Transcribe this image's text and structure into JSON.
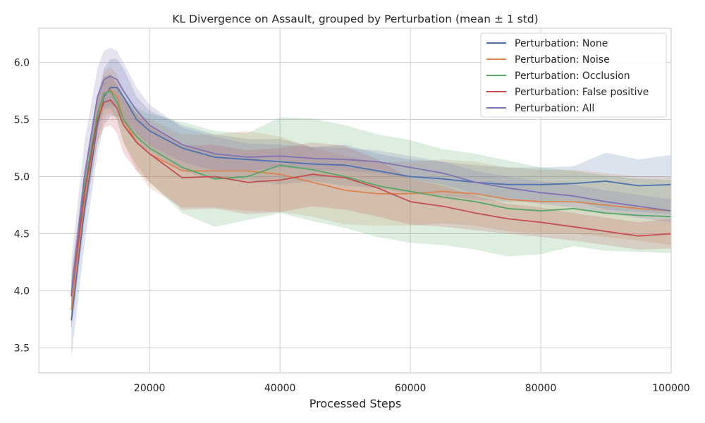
{
  "chart_data": {
    "type": "line",
    "title": "KL Divergence on Assault, grouped by Perturbation (mean ± 1 std)",
    "xlabel": "Processed Steps",
    "ylabel": "",
    "xlim": [
      3000,
      100000
    ],
    "ylim": [
      3.28,
      6.3
    ],
    "x_ticks": [
      20000,
      40000,
      60000,
      80000,
      100000
    ],
    "x_tick_labels": [
      "20000",
      "40000",
      "60000",
      "80000",
      "100000"
    ],
    "y_ticks": [
      3.5,
      4.0,
      4.5,
      5.0,
      5.5,
      6.0
    ],
    "y_tick_labels": [
      "3.5",
      "4.0",
      "4.5",
      "5.0",
      "5.5",
      "6.0"
    ],
    "grid": true,
    "legend_position": "top-right",
    "x": [
      8000,
      10000,
      12000,
      13000,
      14000,
      15000,
      16000,
      18000,
      20000,
      25000,
      30000,
      35000,
      40000,
      45000,
      50000,
      55000,
      60000,
      65000,
      70000,
      75000,
      80000,
      85000,
      90000,
      95000,
      100000
    ],
    "series": [
      {
        "name": "Perturbation: None",
        "color": "#4c72b0",
        "values": [
          3.74,
          4.7,
          5.45,
          5.7,
          5.78,
          5.78,
          5.7,
          5.5,
          5.4,
          5.25,
          5.17,
          5.15,
          5.13,
          5.11,
          5.1,
          5.05,
          5.0,
          4.98,
          4.95,
          4.93,
          4.93,
          4.94,
          4.96,
          4.92,
          4.93
        ],
        "std": [
          0.33,
          0.3,
          0.25,
          0.25,
          0.25,
          0.25,
          0.25,
          0.2,
          0.18,
          0.2,
          0.2,
          0.18,
          0.2,
          0.15,
          0.18,
          0.15,
          0.15,
          0.15,
          0.15,
          0.15,
          0.15,
          0.15,
          0.25,
          0.23,
          0.26
        ]
      },
      {
        "name": "Perturbation: Noise",
        "color": "#dd8452",
        "values": [
          3.83,
          4.8,
          5.5,
          5.72,
          5.76,
          5.7,
          5.5,
          5.3,
          5.2,
          5.05,
          5.05,
          5.05,
          5.02,
          4.95,
          4.88,
          4.85,
          4.85,
          4.87,
          4.85,
          4.8,
          4.78,
          4.78,
          4.75,
          4.72,
          4.7
        ],
        "std": [
          0.2,
          0.2,
          0.2,
          0.2,
          0.2,
          0.2,
          0.2,
          0.25,
          0.3,
          0.32,
          0.32,
          0.35,
          0.33,
          0.3,
          0.3,
          0.28,
          0.28,
          0.28,
          0.28,
          0.28,
          0.28,
          0.28,
          0.28,
          0.28,
          0.3
        ]
      },
      {
        "name": "Perturbation: Occlusion",
        "color": "#55a868",
        "values": [
          3.95,
          4.9,
          5.55,
          5.73,
          5.75,
          5.65,
          5.5,
          5.35,
          5.25,
          5.08,
          4.98,
          5.0,
          5.1,
          5.06,
          5.0,
          4.92,
          4.87,
          4.82,
          4.78,
          4.72,
          4.7,
          4.72,
          4.68,
          4.66,
          4.65
        ],
        "std": [
          0.15,
          0.15,
          0.15,
          0.15,
          0.15,
          0.15,
          0.2,
          0.25,
          0.3,
          0.4,
          0.42,
          0.38,
          0.42,
          0.45,
          0.45,
          0.45,
          0.45,
          0.42,
          0.42,
          0.42,
          0.38,
          0.33,
          0.33,
          0.32,
          0.32
        ]
      },
      {
        "name": "Perturbation: False positive",
        "color": "#c44e52",
        "values": [
          3.95,
          4.85,
          5.5,
          5.65,
          5.67,
          5.6,
          5.45,
          5.3,
          5.2,
          4.99,
          5.0,
          4.95,
          4.97,
          5.02,
          4.99,
          4.9,
          4.78,
          4.74,
          4.68,
          4.63,
          4.6,
          4.56,
          4.52,
          4.48,
          4.5
        ],
        "std": [
          0.2,
          0.2,
          0.2,
          0.22,
          0.22,
          0.22,
          0.25,
          0.25,
          0.25,
          0.28,
          0.28,
          0.28,
          0.28,
          0.28,
          0.28,
          0.25,
          0.2,
          0.18,
          0.15,
          0.13,
          0.13,
          0.12,
          0.12,
          0.12,
          0.13
        ]
      },
      {
        "name": "Perturbation: All",
        "color": "#8172b3",
        "values": [
          3.97,
          5.0,
          5.7,
          5.85,
          5.88,
          5.85,
          5.75,
          5.58,
          5.45,
          5.28,
          5.2,
          5.17,
          5.18,
          5.16,
          5.15,
          5.13,
          5.08,
          5.03,
          4.95,
          4.9,
          4.86,
          4.83,
          4.78,
          4.74,
          4.7
        ],
        "std": [
          0.3,
          0.3,
          0.25,
          0.25,
          0.25,
          0.25,
          0.25,
          0.2,
          0.18,
          0.15,
          0.15,
          0.12,
          0.1,
          0.1,
          0.1,
          0.1,
          0.1,
          0.1,
          0.1,
          0.1,
          0.1,
          0.1,
          0.1,
          0.1,
          0.1
        ]
      }
    ]
  }
}
